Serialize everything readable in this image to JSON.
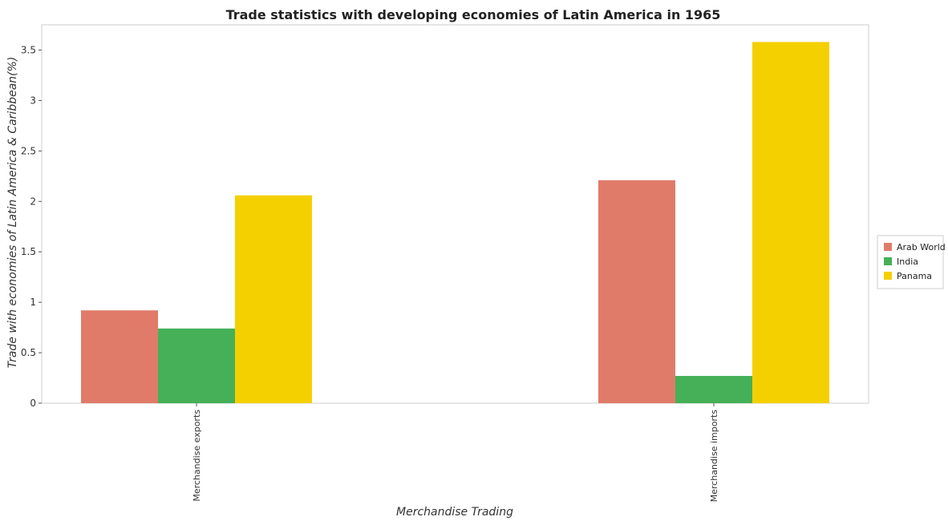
{
  "chart_data": {
    "type": "bar",
    "title": "Trade statistics with developing economies of Latin America in 1965",
    "xlabel": "Merchandise Trading",
    "ylabel": "Trade with economies of Latin America & Caribbean(%)",
    "categories": [
      "Merchandise exports",
      "Merchandise imports"
    ],
    "series": [
      {
        "name": "Arab World",
        "color": "#e07b6a",
        "values": [
          0.92,
          2.21
        ]
      },
      {
        "name": "India",
        "color": "#45b058",
        "values": [
          0.74,
          0.27
        ]
      },
      {
        "name": "Panama",
        "color": "#f5d000",
        "values": [
          2.06,
          3.58
        ]
      }
    ],
    "ylim": [
      0,
      3.75
    ],
    "yticks": [
      "0",
      "0.5",
      "1",
      "1.5",
      "2",
      "2.5",
      "3",
      "3.5"
    ],
    "grid": false,
    "legend_position": "right"
  }
}
